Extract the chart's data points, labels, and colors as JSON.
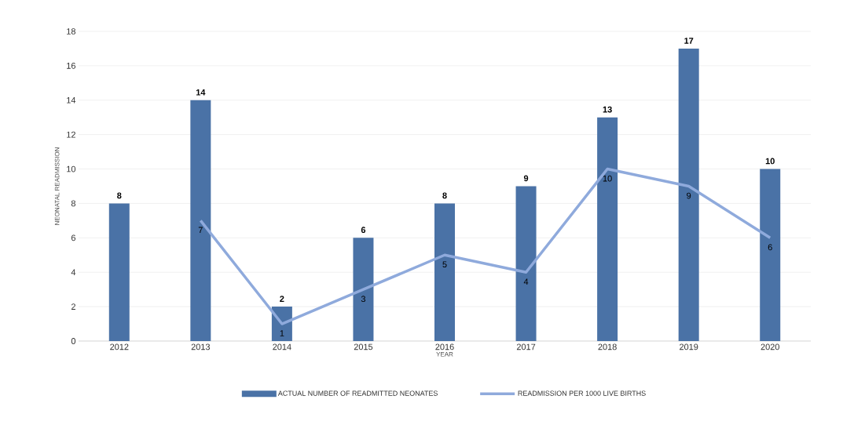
{
  "chart_data": {
    "type": "bar",
    "xlabel": "YEAR",
    "ylabel": "NEONATAL READMISSION",
    "categories": [
      "2012",
      "2013",
      "2014",
      "2015",
      "2016",
      "2017",
      "2018",
      "2019",
      "2020"
    ],
    "series": [
      {
        "name": "ACTUAL NUMBER OF READMITTED NEONATES",
        "color": "#4a72a6",
        "values": [
          8,
          14,
          2,
          6,
          8,
          9,
          13,
          17,
          10
        ]
      },
      {
        "name": "READMISSION PER 1000 LIVE BIRTHS",
        "type": "line",
        "color": "#8faadc",
        "values": [
          null,
          7,
          1,
          3,
          5,
          4,
          10,
          9,
          6
        ]
      }
    ],
    "ylim": [
      0,
      18
    ],
    "yticks": [
      0,
      2,
      4,
      6,
      8,
      10,
      12,
      14,
      16,
      18
    ],
    "grid": "y",
    "legend": "bottom",
    "data_labels": true,
    "marker": "none",
    "line_style": "solid"
  }
}
